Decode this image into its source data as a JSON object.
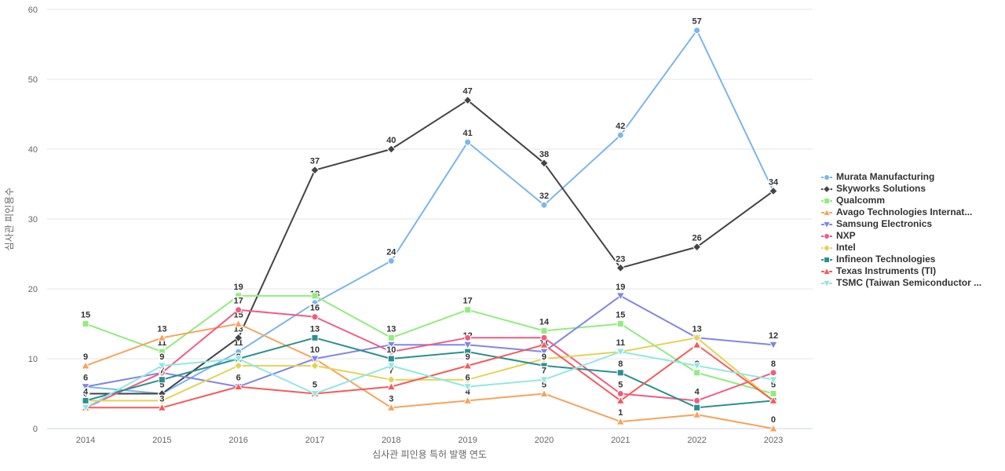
{
  "chart_data": {
    "type": "line",
    "x": [
      2014,
      2015,
      2016,
      2017,
      2018,
      2019,
      2020,
      2021,
      2022,
      2023
    ],
    "xlabel": "심사관 피인용 특허 발행 연도",
    "ylabel": "심사관 피인용수",
    "ylim": [
      0,
      60
    ],
    "yticks": [
      0,
      10,
      20,
      30,
      40,
      50,
      60
    ],
    "grid": "horizontal-only",
    "legend_position": "right",
    "series": [
      {
        "name": "Murata Manufacturing",
        "color": "#7cb5ec",
        "marker": "circle",
        "values": [
          6,
          5,
          11,
          18,
          24,
          41,
          32,
          42,
          57,
          34
        ],
        "labeled": [
          0,
          0,
          1,
          1,
          1,
          1,
          1,
          1,
          1,
          0
        ]
      },
      {
        "name": "Skyworks Solutions",
        "color": "#434348",
        "marker": "diamond",
        "values": [
          5,
          5,
          13,
          37,
          40,
          47,
          38,
          23,
          26,
          34
        ],
        "labeled": [
          0,
          1,
          1,
          1,
          1,
          1,
          1,
          1,
          1,
          1
        ]
      },
      {
        "name": "Qualcomm",
        "color": "#90ed7d",
        "marker": "square",
        "values": [
          15,
          11,
          19,
          19,
          13,
          17,
          14,
          15,
          8,
          5
        ],
        "labeled": [
          1,
          1,
          1,
          0,
          1,
          1,
          1,
          1,
          1,
          1
        ]
      },
      {
        "name": "Avago Technologies Internat...",
        "color": "#f7a35c",
        "marker": "triangle",
        "values": [
          9,
          13,
          15,
          10,
          3,
          4,
          5,
          1,
          2,
          0
        ],
        "labeled": [
          1,
          1,
          1,
          0,
          1,
          1,
          1,
          1,
          1,
          1
        ]
      },
      {
        "name": "Samsung Electronics",
        "color": "#8085e9",
        "marker": "triangle-down",
        "values": [
          6,
          8,
          6,
          10,
          12,
          12,
          11,
          19,
          13,
          12
        ],
        "labeled": [
          1,
          0,
          1,
          1,
          0,
          1,
          1,
          1,
          1,
          1
        ]
      },
      {
        "name": "NXP",
        "color": "#f15c80",
        "marker": "circle",
        "values": [
          3,
          8,
          17,
          16,
          11,
          13,
          13,
          5,
          4,
          8
        ],
        "labeled": [
          0,
          0,
          1,
          1,
          0,
          0,
          0,
          1,
          1,
          1
        ]
      },
      {
        "name": "Intel",
        "color": "#e4d354",
        "marker": "diamond",
        "values": [
          4,
          4,
          9,
          9,
          7,
          7,
          10,
          11,
          13,
          4
        ],
        "labeled": [
          0,
          0,
          1,
          0,
          1,
          0,
          0,
          0,
          0,
          0
        ]
      },
      {
        "name": "Infineon Technologies",
        "color": "#2b908f",
        "marker": "square",
        "values": [
          4,
          7,
          10,
          13,
          10,
          11,
          9,
          8,
          3,
          4
        ],
        "labeled": [
          1,
          1,
          0,
          1,
          1,
          0,
          1,
          1,
          0,
          0
        ]
      },
      {
        "name": "Texas Instruments (TI)",
        "color": "#f45b5b",
        "marker": "triangle",
        "values": [
          3,
          3,
          6,
          5,
          6,
          9,
          12,
          4,
          12,
          4
        ],
        "labeled": [
          0,
          1,
          0,
          0,
          0,
          1,
          0,
          0,
          0,
          0
        ]
      },
      {
        "name": "TSMC (Taiwan Semiconductor ...",
        "color": "#91e8e1",
        "marker": "triangle-down",
        "values": [
          3,
          9,
          10,
          5,
          9,
          6,
          7,
          11,
          9,
          7
        ],
        "labeled": [
          0,
          1,
          0,
          1,
          0,
          1,
          1,
          1,
          0,
          0
        ]
      }
    ]
  }
}
